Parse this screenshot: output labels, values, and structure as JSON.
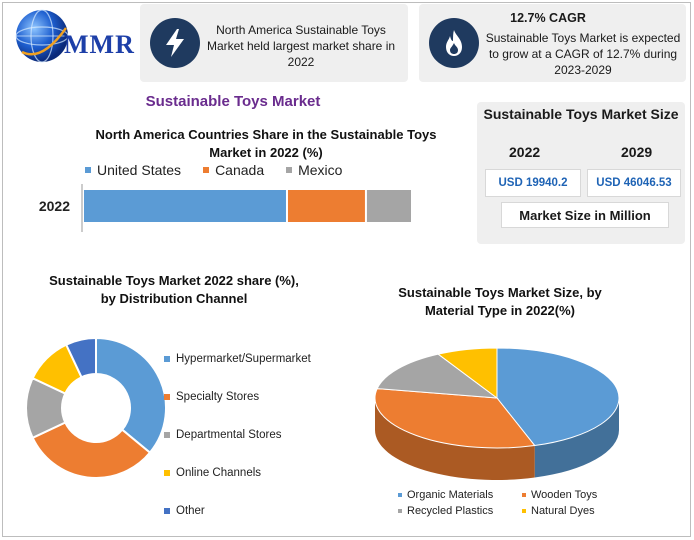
{
  "brand": {
    "logo_text": "MMR"
  },
  "info_boxes": [
    {
      "icon": "lightning-icon",
      "title": "",
      "text": "North America Sustainable Toys Market held largest market share in 2022"
    },
    {
      "icon": "flame-icon",
      "title": "12.7% CAGR",
      "text": "Sustainable Toys Market is expected to grow at a CAGR of 12.7% during 2023-2029"
    }
  ],
  "section_title": "Sustainable Toys Market",
  "market_size": {
    "title": "Sustainable Toys Market Size",
    "years": [
      "2022",
      "2029"
    ],
    "values": [
      "USD 19940.2",
      "USD 46046.53"
    ],
    "unit_label": "Market Size in Million"
  },
  "chart_data": [
    {
      "type": "bar",
      "orientation": "horizontal-stacked",
      "title": "North America Countries Share in the Sustainable Toys Market in 2022 (%)",
      "categories": [
        "2022"
      ],
      "series": [
        {
          "name": "United States",
          "values": [
            62
          ],
          "color": "#5b9bd5"
        },
        {
          "name": "Canada",
          "values": [
            24
          ],
          "color": "#ed7d31"
        },
        {
          "name": "Mexico",
          "values": [
            14
          ],
          "color": "#a5a5a5"
        }
      ],
      "legend_position": "top"
    },
    {
      "type": "pie",
      "variant": "donut",
      "title": "Sustainable Toys Market 2022 share (%), by Distribution Channel",
      "labels": [
        "Hypermarket/Supermarket",
        "Specialty Stores",
        "Departmental Stores",
        "Online Channels",
        "Other"
      ],
      "values": [
        36,
        32,
        14,
        11,
        7
      ],
      "colors": [
        "#5b9bd5",
        "#ed7d31",
        "#a5a5a5",
        "#ffc000",
        "#4472c4"
      ],
      "legend_position": "right"
    },
    {
      "type": "pie",
      "variant": "3d",
      "title": "Sustainable Toys Market Size, by Material Type in 2022(%)",
      "labels": [
        "Organic Materials",
        "Wooden Toys",
        "Recycled Plastics",
        "Natural Dyes"
      ],
      "values": [
        45,
        33,
        14,
        8
      ],
      "colors": [
        "#5b9bd5",
        "#ed7d31",
        "#a5a5a5",
        "#ffc000"
      ],
      "legend_position": "bottom"
    }
  ]
}
